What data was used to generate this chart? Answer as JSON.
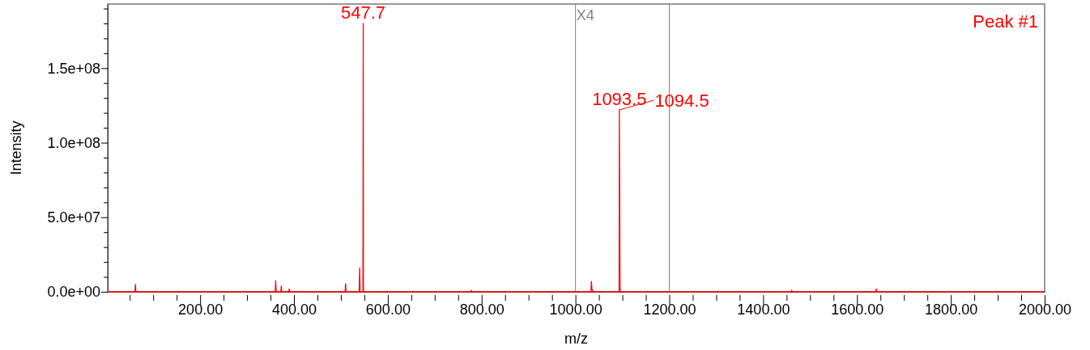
{
  "chart_data": {
    "type": "line",
    "xlabel": "m/z",
    "ylabel": "Intensity",
    "xlim": [
      3,
      2000
    ],
    "ylim": [
      0,
      193000000
    ],
    "xticks": [
      {
        "value": 50,
        "label": null
      },
      {
        "value": 100,
        "label": null
      },
      {
        "value": 150,
        "label": null
      },
      {
        "value": 200,
        "label": "200.00"
      },
      {
        "value": 250,
        "label": null
      },
      {
        "value": 300,
        "label": null
      },
      {
        "value": 350,
        "label": null
      },
      {
        "value": 400,
        "label": "400.00"
      },
      {
        "value": 450,
        "label": null
      },
      {
        "value": 500,
        "label": null
      },
      {
        "value": 550,
        "label": null
      },
      {
        "value": 600,
        "label": "600.00"
      },
      {
        "value": 650,
        "label": null
      },
      {
        "value": 700,
        "label": null
      },
      {
        "value": 750,
        "label": null
      },
      {
        "value": 800,
        "label": "800.00"
      },
      {
        "value": 850,
        "label": null
      },
      {
        "value": 900,
        "label": null
      },
      {
        "value": 950,
        "label": null
      },
      {
        "value": 1000,
        "label": "1000.00"
      },
      {
        "value": 1050,
        "label": null
      },
      {
        "value": 1100,
        "label": null
      },
      {
        "value": 1150,
        "label": null
      },
      {
        "value": 1200,
        "label": "1200.00"
      },
      {
        "value": 1250,
        "label": null
      },
      {
        "value": 1300,
        "label": null
      },
      {
        "value": 1350,
        "label": null
      },
      {
        "value": 1400,
        "label": "1400.00"
      },
      {
        "value": 1450,
        "label": null
      },
      {
        "value": 1500,
        "label": null
      },
      {
        "value": 1550,
        "label": null
      },
      {
        "value": 1600,
        "label": "1600.00"
      },
      {
        "value": 1650,
        "label": null
      },
      {
        "value": 1700,
        "label": null
      },
      {
        "value": 1750,
        "label": null
      },
      {
        "value": 1800,
        "label": "1800.00"
      },
      {
        "value": 1850,
        "label": null
      },
      {
        "value": 1900,
        "label": null
      },
      {
        "value": 1950,
        "label": null
      },
      {
        "value": 2000,
        "label": "2000.00"
      }
    ],
    "yticks": [
      {
        "value": 0,
        "label": "0.0e+00"
      },
      {
        "value": 10000000,
        "label": null
      },
      {
        "value": 20000000,
        "label": null
      },
      {
        "value": 30000000,
        "label": null
      },
      {
        "value": 40000000,
        "label": null
      },
      {
        "value": 50000000,
        "label": "5.0e+07"
      },
      {
        "value": 60000000,
        "label": null
      },
      {
        "value": 70000000,
        "label": null
      },
      {
        "value": 80000000,
        "label": null
      },
      {
        "value": 90000000,
        "label": null
      },
      {
        "value": 100000000,
        "label": "1.0e+08"
      },
      {
        "value": 110000000,
        "label": null
      },
      {
        "value": 120000000,
        "label": null
      },
      {
        "value": 130000000,
        "label": null
      },
      {
        "value": 140000000,
        "label": null
      },
      {
        "value": 150000000,
        "label": "1.5e+08"
      },
      {
        "value": 160000000,
        "label": null
      },
      {
        "value": 170000000,
        "label": null
      },
      {
        "value": 180000000,
        "label": null
      },
      {
        "value": 190000000,
        "label": null
      }
    ],
    "series": [
      {
        "color": "#ff0000",
        "x": [
          3,
          61,
          62,
          63,
          360,
          361,
          362,
          372,
          373,
          374,
          389,
          390,
          391,
          509,
          510,
          511,
          539,
          540,
          541,
          547,
          547.7,
          548,
          777,
          778,
          779,
          1033,
          1034,
          1035,
          1037,
          1093,
          1093.5,
          1095,
          1096,
          1460,
          1461,
          1462,
          1640,
          1641,
          1642,
          2000
        ],
        "values": [
          0,
          0,
          5000000,
          0,
          0,
          7500000,
          0,
          0,
          3800000,
          0,
          0,
          2000000,
          0,
          0,
          5400000,
          0,
          0,
          16000000,
          0,
          0,
          180000000,
          0,
          0,
          1000000,
          0,
          0,
          7000000,
          2000000,
          0,
          0,
          122000000,
          2000000,
          0,
          0,
          1000000,
          0,
          0,
          2000000,
          0,
          0
        ]
      }
    ],
    "ref_lines": [
      {
        "axis": "x",
        "value": 1000,
        "label": "X4",
        "color": "#808080"
      },
      {
        "axis": "x",
        "value": 1200,
        "label": null,
        "color": "#808080"
      }
    ],
    "annotations": [
      {
        "text": "547.7",
        "x": 547.7,
        "y": 180000000
      },
      {
        "text": "1093.5",
        "x": 1093.5,
        "y": 122000000
      },
      {
        "text": "1094.5",
        "x": 1094.5,
        "y": 122000000
      },
      "Peak #1"
    ],
    "grid": false,
    "marker": "none",
    "line_style": "solid"
  }
}
